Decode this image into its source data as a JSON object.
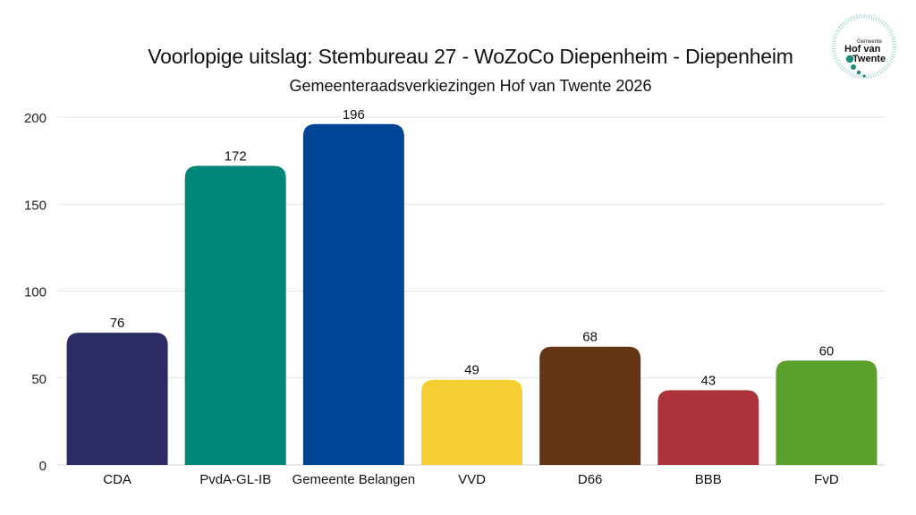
{
  "logo": {
    "small_text": "Gemeente",
    "line1": "Hof van",
    "line2": "Twente",
    "accent": "#1a8a7a"
  },
  "chart_data": {
    "type": "bar",
    "title": "Voorlopige uitslag: Stembureau 27 - WoZoCo Diepenheim - Diepenheim",
    "subtitle": "Gemeenteraadsverkiezingen Hof van Twente 2026",
    "xlabel": "",
    "ylabel": "",
    "ylim": [
      0,
      200
    ],
    "yticks": [
      0,
      50,
      100,
      150,
      200
    ],
    "grid": true,
    "categories": [
      "CDA",
      "PvdA-GL-IB",
      "Gemeente Belangen",
      "VVD",
      "D66",
      "BBB",
      "FvD"
    ],
    "values": [
      76,
      172,
      196,
      49,
      68,
      43,
      60
    ],
    "colors": [
      "#2d2b63",
      "#00877a",
      "#004595",
      "#f5cf31",
      "#643615",
      "#ad333b",
      "#5b9f2d"
    ]
  }
}
